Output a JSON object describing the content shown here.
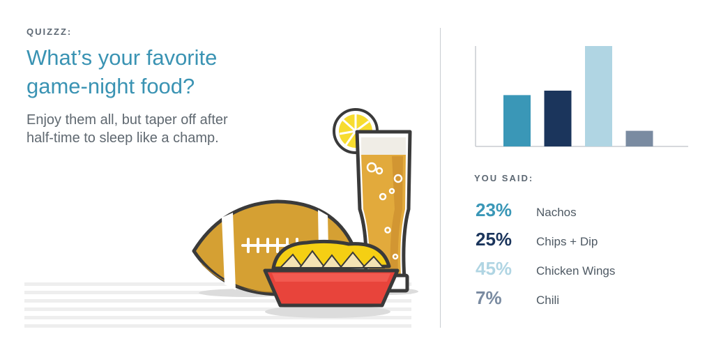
{
  "header": {
    "kicker": "QUIZZZ:",
    "title": "What’s your favorite game-night food?",
    "subtitle": "Enjoy them all, but taper off after half-time to sleep like a champ."
  },
  "results": {
    "label": "YOU SAID:"
  },
  "colors": {
    "nachos": "#3a97b7",
    "chips_dip": "#1b355c",
    "chicken_wings": "#b0d5e3",
    "chili": "#7a8ba1"
  },
  "illustration": {
    "icons": [
      "lemon-slice-icon",
      "beer-glass-icon",
      "football-icon",
      "nacho-bowl-icon"
    ]
  },
  "chart_data": {
    "type": "bar",
    "categories": [
      "Nachos",
      "Chips + Dip",
      "Chicken Wings",
      "Chili"
    ],
    "values": [
      23,
      25,
      45,
      7
    ],
    "value_labels": [
      "23%",
      "25%",
      "45%",
      "7%"
    ],
    "colors": [
      "#3a97b7",
      "#1b355c",
      "#b0d5e3",
      "#7a8ba1"
    ],
    "ylim": [
      0,
      45
    ],
    "grid": false,
    "title": "",
    "xlabel": "",
    "ylabel": ""
  }
}
